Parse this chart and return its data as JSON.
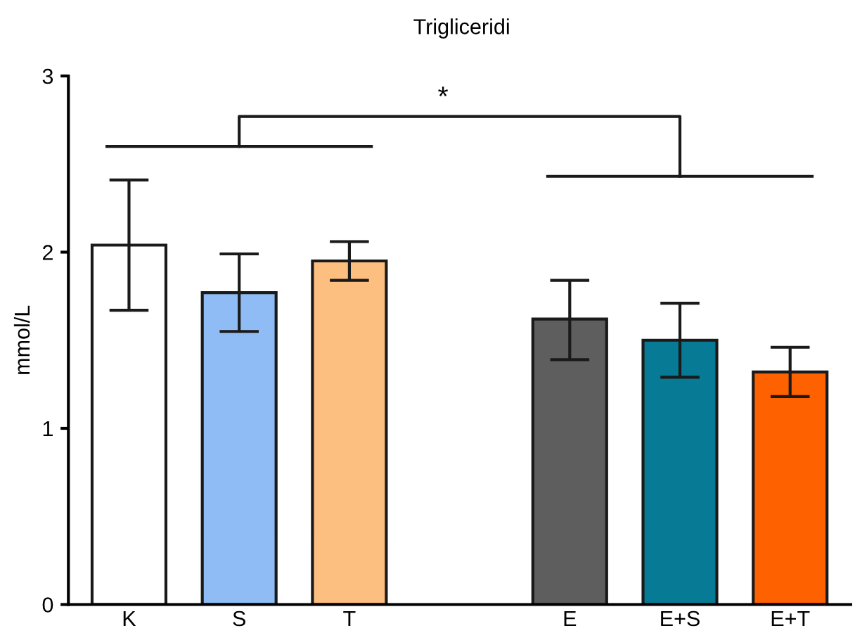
{
  "chart_data": {
    "type": "bar",
    "title": "Trigliceridi",
    "ylabel": "mmol/L",
    "categories": [
      "K",
      "S",
      "T",
      null,
      "E",
      "E+S",
      "E+T"
    ],
    "values": [
      2.04,
      1.77,
      1.95,
      null,
      1.62,
      1.5,
      1.32
    ],
    "colors": [
      "#ffffff",
      "#8fbcf5",
      "#fdbf80",
      "#ffffff",
      "#5e5e5e",
      "#077b96",
      "#fe6100"
    ],
    "errors": [
      [
        1.67,
        2.41
      ],
      [
        1.55,
        1.99
      ],
      [
        1.84,
        2.06
      ],
      null,
      [
        1.39,
        1.84
      ],
      [
        1.29,
        1.71
      ],
      [
        1.18,
        1.46
      ]
    ],
    "ylim": [
      0,
      3
    ],
    "yticks": [
      0,
      1,
      2,
      3
    ],
    "grid": false,
    "legend": false,
    "annotations": [
      "*"
    ]
  }
}
